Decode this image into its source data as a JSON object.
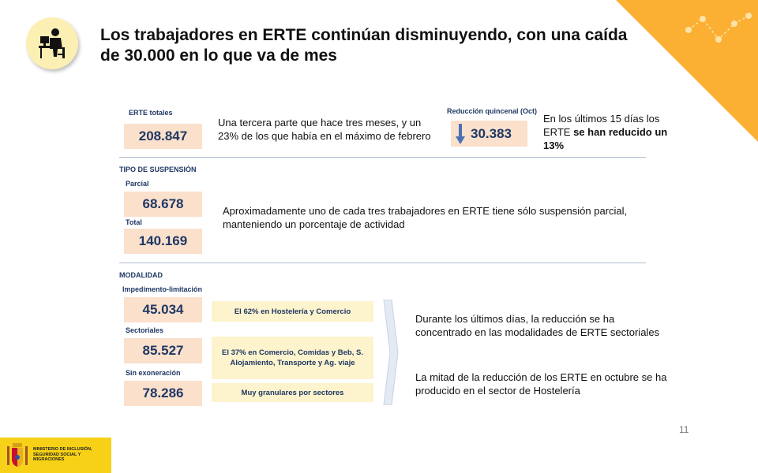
{
  "title": "Los trabajadores en ERTE continúan disminuyendo, con una caída de 30.000 en lo que va de mes",
  "erte_totales": {
    "label": "ERTE totales",
    "value": "208.847",
    "description": "Una tercera parte que hace tres meses, y un 23% de los que había en el máximo de febrero"
  },
  "reduccion": {
    "label": "Reducción quincenal (Oct)",
    "value": "30.383",
    "description_plain": "En los últimos 15 días los ERTE",
    "description_bold": "se han reducido un 13%"
  },
  "tipo_suspension": {
    "heading": "TIPO DE SUSPENSIÓN",
    "parcial_label": "Parcial",
    "parcial_value": "68.678",
    "total_label": "Total",
    "total_value": "140.169",
    "description": "Aproximadamente uno de cada tres trabajadores en ERTE tiene sólo suspensión parcial, manteniendo un porcentaje de actividad"
  },
  "modalidad": {
    "heading": "MODALIDAD",
    "items": [
      {
        "label": "Impedimento-limitación",
        "value": "45.034",
        "note": "El 62% en Hostelería y Comercio"
      },
      {
        "label": "Sectoriales",
        "value": "85.527",
        "note": "El 37% en Comercio, Comidas y Beb, S. Alojamiento, Transporte y Ag. viaje"
      },
      {
        "label": "Sin exoneración",
        "value": "78.286",
        "note": "Muy granulares por sectores"
      }
    ],
    "description_1": "Durante los últimos días, la reducción se ha concentrado en las modalidades de ERTE sectoriales",
    "description_2": "La mitad de la reducción de los ERTE en octubre se ha producido en el sector de Hostelería"
  },
  "page_number": "11",
  "logo": {
    "text": "MINISTERIO DE INCLUSIÓN, SEGURIDAD SOCIAL Y MIGRACIONES"
  },
  "colors": {
    "accent_orange": "#fbb034",
    "number_box": "#fbe0cc",
    "note_box": "#fdf3cc",
    "label_navy": "#1f3864",
    "logo_yellow": "#f7d117"
  },
  "icons": {
    "header": "worker-at-desk-icon",
    "reduction": "down-arrow-icon",
    "flow": "chevron-right-icon",
    "logo": "coat-of-arms-icon"
  }
}
